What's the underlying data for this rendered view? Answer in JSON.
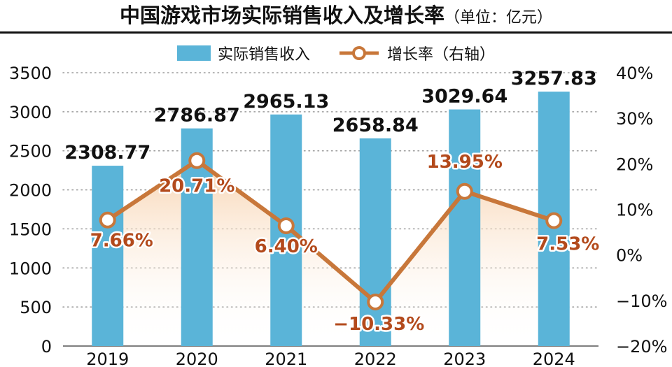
{
  "title": {
    "main": "中国游戏市场实际销售收入及增长率",
    "unit": "（单位：亿元）"
  },
  "legend": {
    "bar_label": "实际销售收入",
    "line_label": "增长率（右轴）"
  },
  "colors": {
    "bar": "#5ab4d8",
    "line": "#c8773a",
    "label_growth": "#b34a1c",
    "area_top": "#f7cfa8",
    "grid": "#9a9a9a",
    "text": "#111111"
  },
  "chart_data": {
    "type": "bar",
    "categories": [
      "2019",
      "2020",
      "2021",
      "2022",
      "2023",
      "2024"
    ],
    "series": [
      {
        "name": "实际销售收入",
        "type": "bar",
        "axis": "left",
        "values": [
          2308.77,
          2786.87,
          2965.13,
          2658.84,
          3029.64,
          3257.83
        ],
        "labels": [
          "2308.77",
          "2786.87",
          "2965.13",
          "2658.84",
          "3029.64",
          "3257.83"
        ]
      },
      {
        "name": "增长率（右轴）",
        "type": "line",
        "axis": "right",
        "values": [
          7.66,
          20.71,
          6.4,
          -10.33,
          13.95,
          7.53
        ],
        "labels": [
          "7.66%",
          "20.71%",
          "6.40%",
          "−10.33%",
          "13.95%",
          "7.53%"
        ]
      }
    ],
    "y_left": {
      "ylim": [
        0,
        3500
      ],
      "ticks": [
        "0",
        "500",
        "1000",
        "1500",
        "2000",
        "2500",
        "3000",
        "3500"
      ]
    },
    "y_right": {
      "ylim": [
        -20,
        40
      ],
      "ticks": [
        "−20%",
        "−10%",
        "0%",
        "10%",
        "20%",
        "30%",
        "40%"
      ]
    },
    "grid": true,
    "legend_position": "top-center"
  }
}
